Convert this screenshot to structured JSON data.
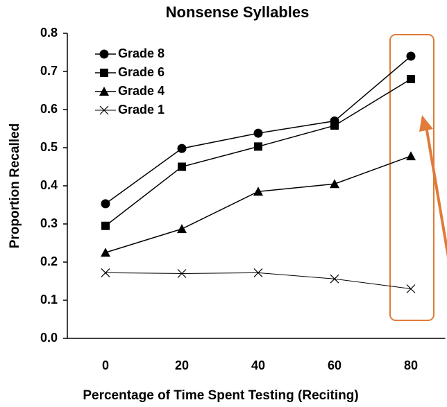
{
  "chart_data": {
    "type": "line",
    "title": "Nonsense Syllables",
    "x_label": "Percentage of Time Spent Testing (Reciting)",
    "y_label": "Proportion Recalled",
    "x": [
      0,
      20,
      40,
      60,
      80
    ],
    "xlim": [
      -10,
      89
    ],
    "xticks": [
      0,
      20,
      40,
      60,
      80
    ],
    "ylim": [
      0,
      0.8
    ],
    "yticks": [
      {
        "value": 0,
        "label": "0.0"
      },
      0.1,
      0.2,
      0.3,
      0.4,
      0.5,
      0.6,
      0.7,
      {
        "value": 0.8,
        "label": "0.8"
      }
    ],
    "legend": "upper left",
    "series": [
      {
        "name": "Grade 8",
        "color": "#000000",
        "marker": "circle",
        "values": [
          0.353,
          0.498,
          0.538,
          0.57,
          0.74
        ]
      },
      {
        "name": "Grade 6",
        "color": "#000000",
        "marker": "square",
        "values": [
          0.295,
          0.45,
          0.503,
          0.558,
          0.68
        ]
      },
      {
        "name": "Grade 4",
        "color": "#000000",
        "marker": "triangle",
        "values": [
          0.225,
          0.287,
          0.385,
          0.405,
          0.478
        ]
      },
      {
        "name": "Grade 1",
        "color": "#000000",
        "marker": "x",
        "values": [
          0.172,
          0.17,
          0.172,
          0.156,
          0.13
        ]
      }
    ]
  }
}
